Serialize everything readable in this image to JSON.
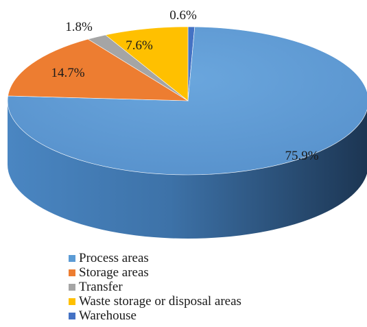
{
  "chart_data": {
    "type": "pie",
    "style": "3d",
    "categories": [
      "Process areas",
      "Storage areas",
      "Transfer",
      "Waste storage or disposal areas",
      "Warehouse"
    ],
    "values": [
      75.9,
      14.7,
      1.8,
      7.6,
      0.6
    ],
    "value_labels": [
      "75.9%",
      "14.7%",
      "1.8%",
      "7.6%",
      "0.6%"
    ],
    "unit": "%",
    "colors": [
      "#5b9bd5",
      "#ed7d31",
      "#a5a5a5",
      "#ffc000",
      "#4472c4"
    ],
    "legend_position": "bottom"
  }
}
